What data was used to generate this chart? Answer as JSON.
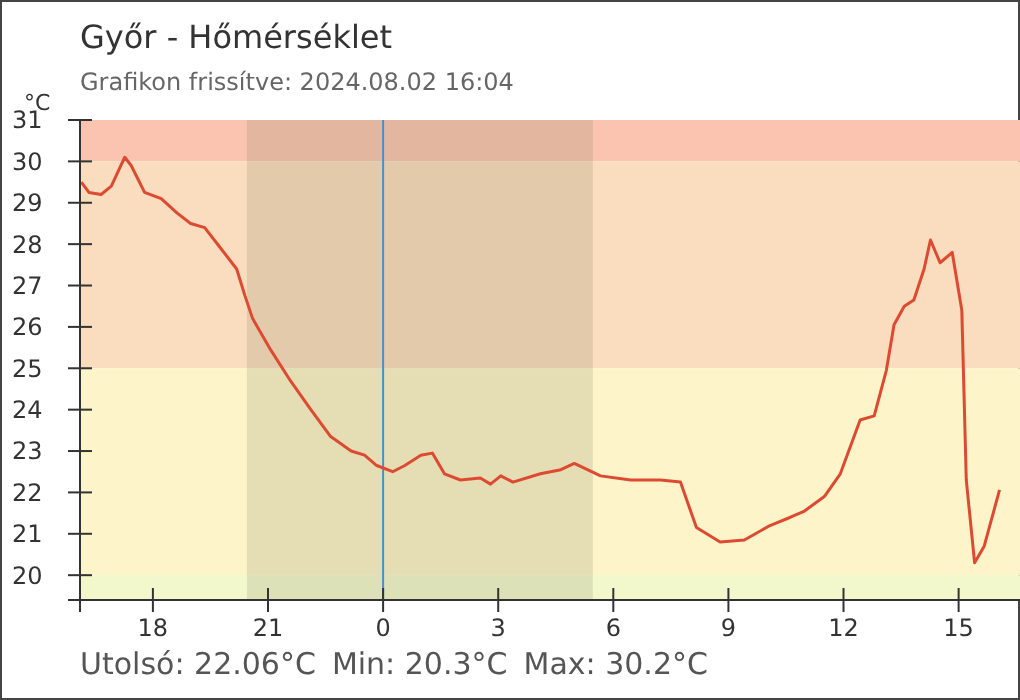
{
  "chart_data": {
    "type": "line",
    "title": "Győr - Hőmérséklet",
    "subtitle": "Grafikon frissítve: 2024.08.02 16:04",
    "ylabel": "°C",
    "annotations": [
      "Utolsó: 22.06°C",
      "Min: 20.3°C",
      "Max: 30.2°C"
    ],
    "xlim": [
      "2024-08-01T16:06",
      "2024-08-02T16:36"
    ],
    "ylim": [
      19.4,
      31
    ],
    "xticks": [
      {
        "value": "2024-08-01T18:00",
        "label": "18"
      },
      {
        "value": "2024-08-01T21:00",
        "label": "21"
      },
      {
        "value": "2024-08-02T00:00",
        "label": "0"
      },
      {
        "value": "2024-08-02T03:00",
        "label": "3"
      },
      {
        "value": "2024-08-02T06:00",
        "label": "6"
      },
      {
        "value": "2024-08-02T09:00",
        "label": "9"
      },
      {
        "value": "2024-08-02T12:00",
        "label": "12"
      },
      {
        "value": "2024-08-02T15:00",
        "label": "15"
      }
    ],
    "yticks": [
      20,
      21,
      22,
      23,
      24,
      25,
      26,
      27,
      28,
      29,
      30,
      31
    ],
    "grid": false,
    "marker": "none",
    "line_style": "solid",
    "bands": [
      {
        "axis": "y",
        "from": 30,
        "to": 31,
        "color": "#fac4b0"
      },
      {
        "axis": "y",
        "from": 25,
        "to": 30,
        "color": "#fadcbe"
      },
      {
        "axis": "y",
        "from": 20,
        "to": 25,
        "color": "#fdf5c9"
      },
      {
        "axis": "y",
        "from": 19.4,
        "to": 20,
        "color": "#f2f8cc"
      },
      {
        "axis": "x",
        "from": "2024-08-01T20:27",
        "to": "2024-08-02T05:28",
        "color": "#7a7a5a"
      }
    ],
    "ref_lines": [
      {
        "axis": "x",
        "value": "2024-08-02T00:00",
        "color": "#4a90c8"
      }
    ],
    "series": [
      {
        "color": "#dd4a32",
        "x": [
          "2024-08-01T16:08",
          "2024-08-01T16:20",
          "2024-08-01T16:39",
          "2024-08-01T16:55",
          "2024-08-01T17:16",
          "2024-08-01T17:26",
          "2024-08-01T17:47",
          "2024-08-01T18:13",
          "2024-08-01T18:38",
          "2024-08-01T18:59",
          "2024-08-01T19:21",
          "2024-08-01T19:46",
          "2024-08-01T20:11",
          "2024-08-01T20:24",
          "2024-08-01T20:36",
          "2024-08-01T21:04",
          "2024-08-01T21:35",
          "2024-08-01T22:07",
          "2024-08-01T22:38",
          "2024-08-01T23:10",
          "2024-08-01T23:31",
          "2024-08-01T23:50",
          "2024-08-02T00:15",
          "2024-08-02T00:34",
          "2024-08-02T00:59",
          "2024-08-02T01:17",
          "2024-08-02T01:36",
          "2024-08-02T02:01",
          "2024-08-02T02:32",
          "2024-08-02T02:48",
          "2024-08-02T03:04",
          "2024-08-02T03:23",
          "2024-08-02T04:06",
          "2024-08-02T04:38",
          "2024-08-02T04:59",
          "2024-08-02T05:40",
          "2024-08-02T06:27",
          "2024-08-02T07:14",
          "2024-08-02T07:45",
          "2024-08-02T08:10",
          "2024-08-02T08:47",
          "2024-08-02T09:25",
          "2024-08-02T10:05",
          "2024-08-02T10:37",
          "2024-08-02T10:59",
          "2024-08-02T11:30",
          "2024-08-02T11:55",
          "2024-08-02T12:26",
          "2024-08-02T12:48",
          "2024-08-02T13:07",
          "2024-08-02T13:19",
          "2024-08-02T13:35",
          "2024-08-02T13:50",
          "2024-08-02T14:06",
          "2024-08-02T14:16",
          "2024-08-02T14:31",
          "2024-08-02T14:50",
          "2024-08-02T15:05",
          "2024-08-02T15:12",
          "2024-08-02T15:25",
          "2024-08-02T15:40",
          "2024-08-02T16:04"
        ],
        "values": [
          29.5,
          29.25,
          29.2,
          29.4,
          30.1,
          29.9,
          29.25,
          29.1,
          28.75,
          28.5,
          28.4,
          27.9,
          27.4,
          26.75,
          26.2,
          25.45,
          24.7,
          24.0,
          23.35,
          23.0,
          22.9,
          22.65,
          22.5,
          22.65,
          22.9,
          22.95,
          22.45,
          22.3,
          22.35,
          22.2,
          22.4,
          22.25,
          22.45,
          22.55,
          22.7,
          22.4,
          22.3,
          22.3,
          22.25,
          21.15,
          20.8,
          20.85,
          21.2,
          21.4,
          21.55,
          21.9,
          22.45,
          23.75,
          23.85,
          24.95,
          26.05,
          26.5,
          26.65,
          27.4,
          28.1,
          27.55,
          27.8,
          26.4,
          22.3,
          20.3,
          20.7,
          22.06
        ]
      }
    ]
  }
}
